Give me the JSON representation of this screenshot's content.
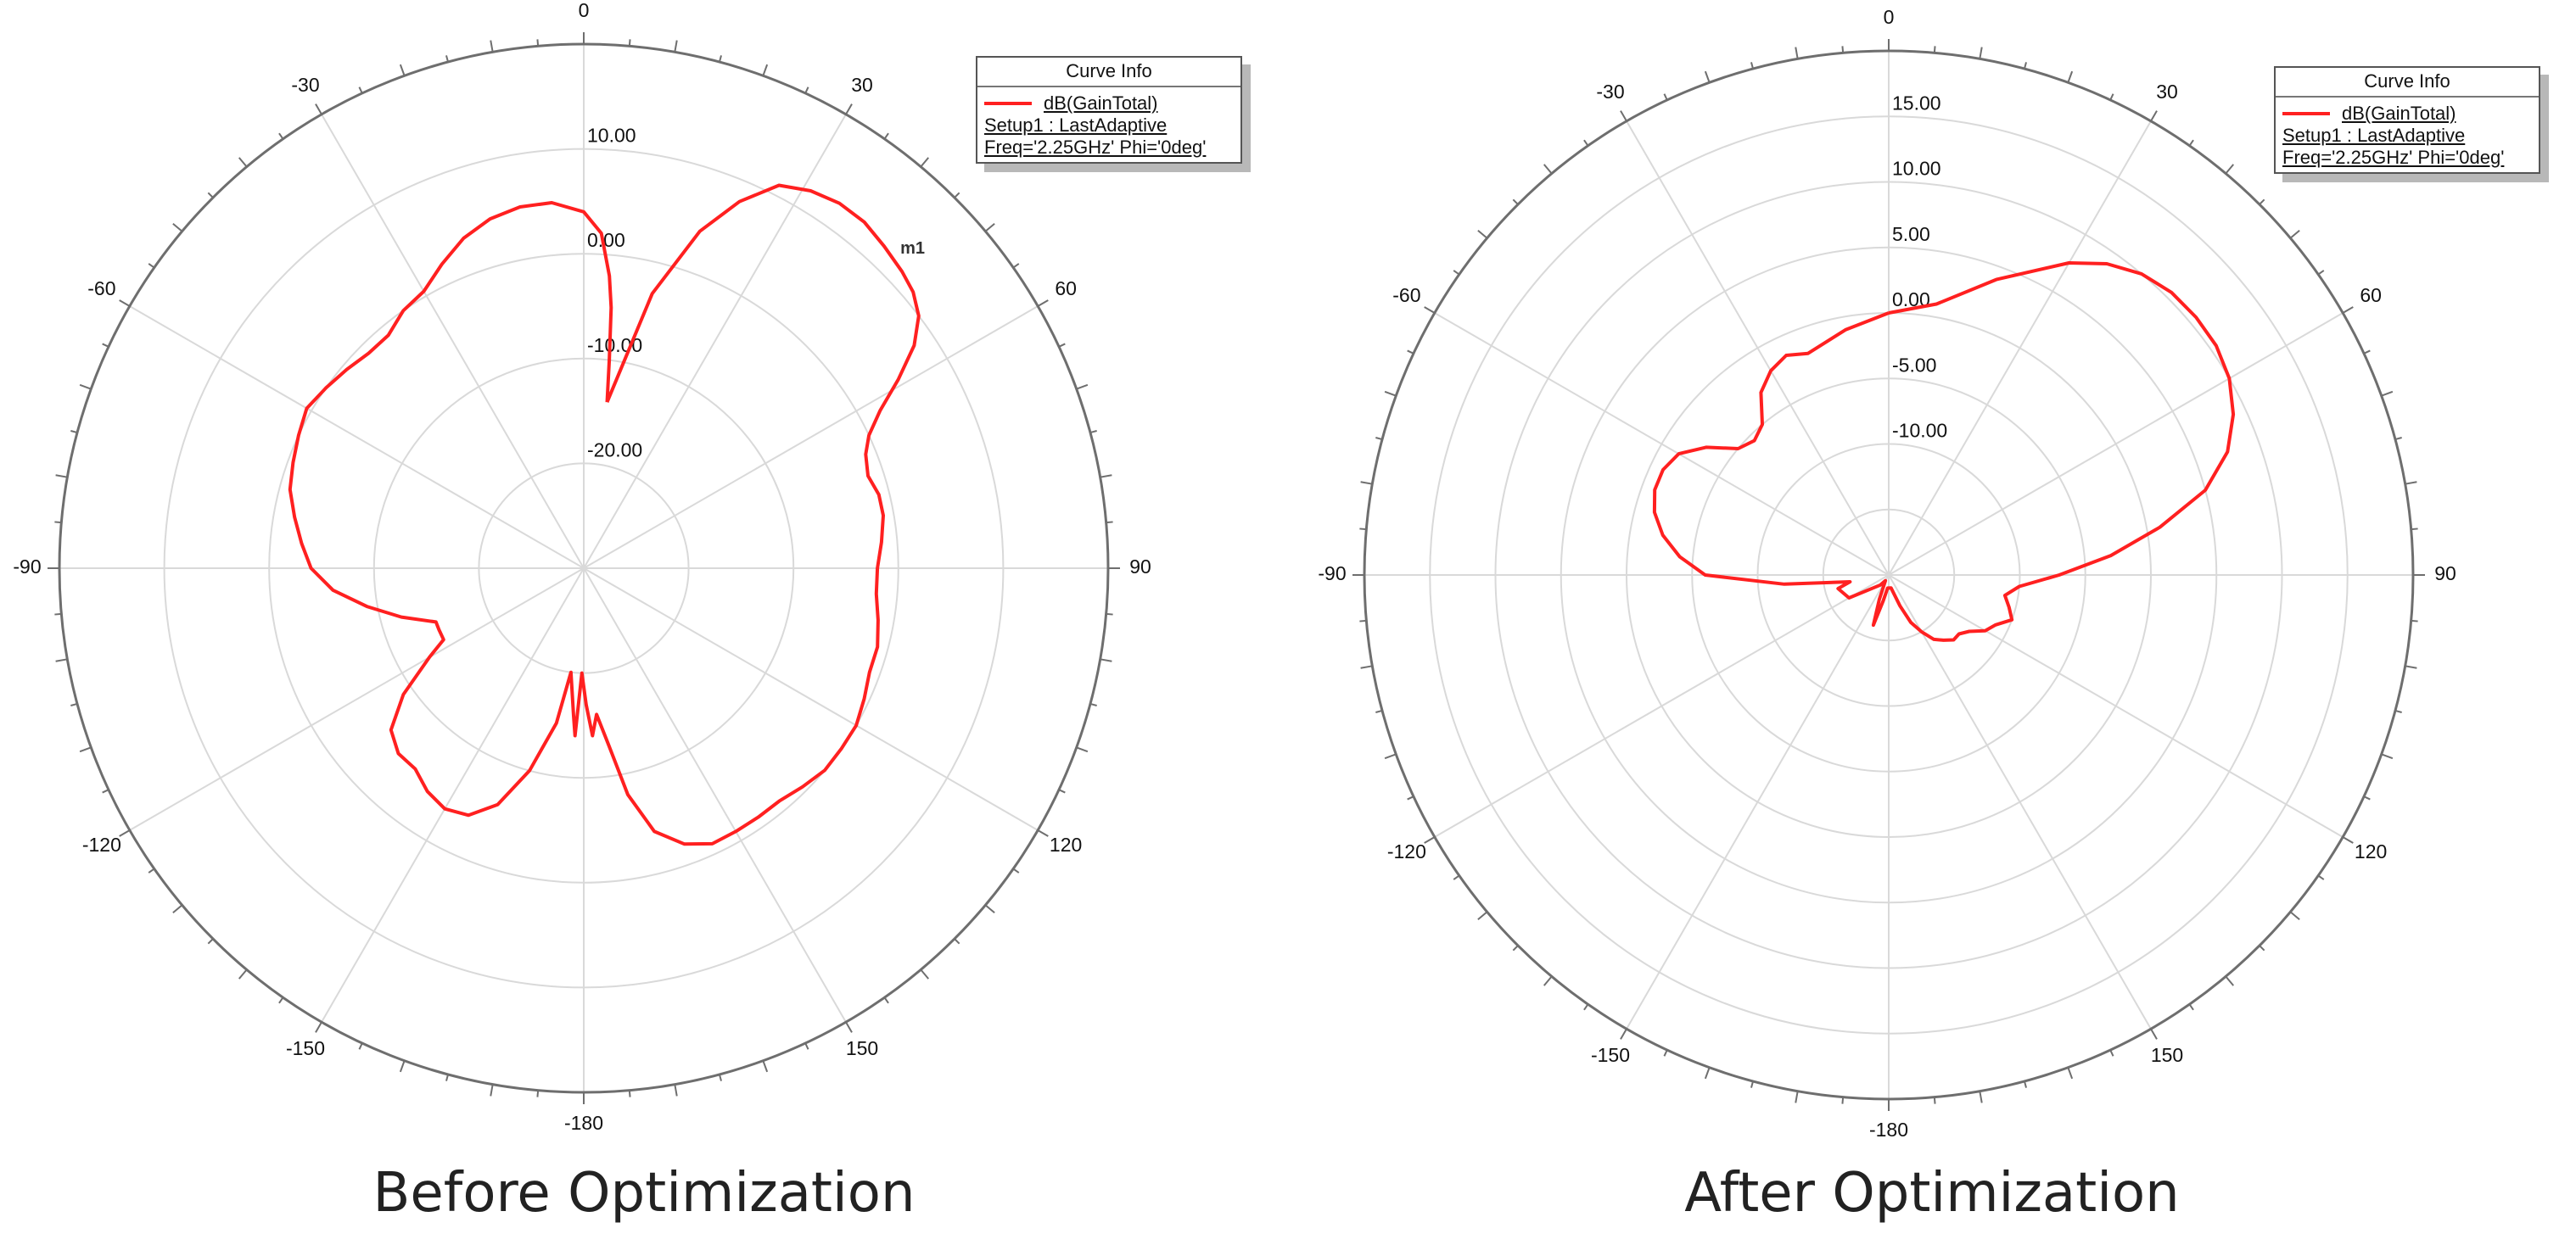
{
  "captions": {
    "left": "Before Optimization",
    "right": "After Optimization"
  },
  "legend_common": {
    "title": "Curve Info",
    "trace": "dB(GainTotal)",
    "setup": "Setup1 : LastAdaptive",
    "freq": "Freq='2.25GHz' Phi='0deg'",
    "color": "#ff2020"
  },
  "marker": {
    "label": "m1"
  },
  "chart_data": [
    {
      "type": "polar-line",
      "title": "Before Optimization",
      "series": [
        {
          "name": "dB(GainTotal)",
          "color": "#ff2020"
        }
      ],
      "angle_ticks": [
        0,
        30,
        60,
        90,
        120,
        150,
        -180,
        -150,
        -120,
        -90,
        -60,
        -30
      ],
      "radial_range_db": [
        -30,
        20
      ],
      "radial_labels": [
        "10.00",
        "0.00",
        "-10.00",
        "-20.00"
      ],
      "points": [
        [
          8,
          -14
        ],
        [
          14,
          -3
        ],
        [
          19,
          4
        ],
        [
          23,
          8
        ],
        [
          27,
          11
        ],
        [
          31,
          12
        ],
        [
          35,
          12.5
        ],
        [
          39,
          12.5
        ],
        [
          43,
          12
        ],
        [
          47,
          11.5
        ],
        [
          50,
          11
        ],
        [
          53,
          10
        ],
        [
          56,
          8
        ],
        [
          59,
          5
        ],
        [
          62,
          2
        ],
        [
          65,
          0
        ],
        [
          68,
          -1
        ],
        [
          72,
          -1.5
        ],
        [
          76,
          -1
        ],
        [
          80,
          -1
        ],
        [
          85,
          -1.5
        ],
        [
          90,
          -2
        ],
        [
          95,
          -2
        ],
        [
          100,
          -1.5
        ],
        [
          105,
          -1
        ],
        [
          110,
          -1
        ],
        [
          115,
          -0.5
        ],
        [
          120,
          0
        ],
        [
          125,
          0
        ],
        [
          130,
          0
        ],
        [
          135,
          -0.5
        ],
        [
          140,
          -1
        ],
        [
          145,
          -1
        ],
        [
          150,
          -1
        ],
        [
          155,
          -1
        ],
        [
          160,
          -2
        ],
        [
          165,
          -4
        ],
        [
          169,
          -8
        ],
        [
          172,
          -13
        ],
        [
          175,
          -16
        ],
        [
          177,
          -14
        ],
        [
          179,
          -17
        ],
        [
          -179,
          -20
        ],
        [
          -177,
          -14
        ],
        [
          -176,
          -16
        ],
        [
          -173,
          -20
        ],
        [
          -170,
          -15
        ],
        [
          -165,
          -10
        ],
        [
          -160,
          -6
        ],
        [
          -155,
          -4
        ],
        [
          -150,
          -3.5
        ],
        [
          -145,
          -4
        ],
        [
          -140,
          -5
        ],
        [
          -135,
          -5
        ],
        [
          -130,
          -6
        ],
        [
          -125,
          -9
        ],
        [
          -120,
          -13
        ],
        [
          -117,
          -15
        ],
        [
          -113,
          -15
        ],
        [
          -110,
          -15
        ],
        [
          -105,
          -12
        ],
        [
          -100,
          -9
        ],
        [
          -95,
          -6
        ],
        [
          -90,
          -4
        ],
        [
          -85,
          -3
        ],
        [
          -80,
          -2
        ],
        [
          -75,
          -1
        ],
        [
          -70,
          -0.5
        ],
        [
          -65,
          0
        ],
        [
          -60,
          0.5
        ],
        [
          -55,
          0
        ],
        [
          -50,
          -0.5
        ],
        [
          -45,
          -1
        ],
        [
          -40,
          -1
        ],
        [
          -35,
          0
        ],
        [
          -30,
          0.5
        ],
        [
          -25,
          2
        ],
        [
          -20,
          3.5
        ],
        [
          -15,
          4.5
        ],
        [
          -10,
          5
        ],
        [
          -5,
          5
        ],
        [
          0,
          4
        ],
        [
          3,
          2
        ],
        [
          5,
          -2
        ],
        [
          6,
          -5
        ],
        [
          7,
          -10
        ],
        [
          8,
          -14
        ]
      ]
    },
    {
      "type": "polar-line",
      "title": "After Optimization",
      "series": [
        {
          "name": "dB(GainTotal)",
          "color": "#ff2020"
        }
      ],
      "angle_ticks": [
        0,
        30,
        60,
        90,
        120,
        150,
        -180,
        -150,
        -120,
        -90,
        -60,
        -30
      ],
      "radial_range_db": [
        -20,
        20
      ],
      "radial_labels": [
        "15.00",
        "10.00",
        "5.00",
        "0.00",
        "-5.00",
        "-10.00"
      ],
      "points": [
        [
          0,
          0
        ],
        [
          10,
          1
        ],
        [
          20,
          4
        ],
        [
          30,
          7.5
        ],
        [
          35,
          9
        ],
        [
          40,
          10
        ],
        [
          45,
          10.5
        ],
        [
          50,
          10.6
        ],
        [
          55,
          10.5
        ],
        [
          60,
          10
        ],
        [
          65,
          9
        ],
        [
          70,
          7.5
        ],
        [
          75,
          5
        ],
        [
          80,
          1
        ],
        [
          85,
          -3
        ],
        [
          90,
          -7
        ],
        [
          95,
          -10
        ],
        [
          100,
          -11
        ],
        [
          105,
          -10.5
        ],
        [
          110,
          -10
        ],
        [
          115,
          -11
        ],
        [
          120,
          -11.5
        ],
        [
          125,
          -12.5
        ],
        [
          130,
          -13
        ],
        [
          135,
          -13
        ],
        [
          140,
          -13.5
        ],
        [
          145,
          -14
        ],
        [
          150,
          -15
        ],
        [
          155,
          -16
        ],
        [
          160,
          -17.5
        ],
        [
          170,
          -19
        ],
        [
          -175,
          -19
        ],
        [
          -168,
          -18
        ],
        [
          -163,
          -16
        ],
        [
          -159,
          -18
        ],
        [
          -150,
          -19.5
        ],
        [
          -140,
          -19
        ],
        [
          -120,
          -16.5
        ],
        [
          -105,
          -16
        ],
        [
          -100,
          -17
        ],
        [
          -95,
          -12
        ],
        [
          -90,
          -6
        ],
        [
          -85,
          -4
        ],
        [
          -80,
          -2.5
        ],
        [
          -75,
          -1.5
        ],
        [
          -70,
          -1
        ],
        [
          -65,
          -1
        ],
        [
          -60,
          -1.5
        ],
        [
          -55,
          -3
        ],
        [
          -50,
          -5
        ],
        [
          -45,
          -5.5
        ],
        [
          -40,
          -5
        ],
        [
          -35,
          -3
        ],
        [
          -30,
          -2
        ],
        [
          -25,
          -1.5
        ],
        [
          -20,
          -2
        ],
        [
          -10,
          -1
        ],
        [
          0,
          0
        ]
      ]
    }
  ]
}
